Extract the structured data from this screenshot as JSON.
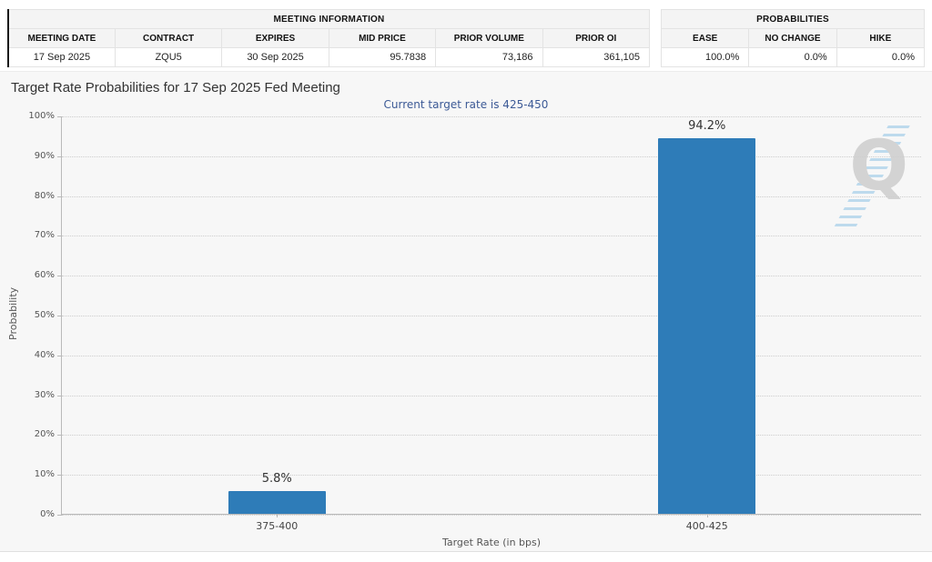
{
  "meeting_info": {
    "title": "MEETING INFORMATION",
    "columns": [
      "MEETING DATE",
      "CONTRACT",
      "EXPIRES",
      "MID PRICE",
      "PRIOR VOLUME",
      "PRIOR OI"
    ],
    "values": [
      "17 Sep 2025",
      "ZQU5",
      "30 Sep 2025",
      "95.7838",
      "73,186",
      "361,105"
    ]
  },
  "probabilities": {
    "title": "PROBABILITIES",
    "columns": [
      "EASE",
      "NO CHANGE",
      "HIKE"
    ],
    "values": [
      "100.0%",
      "0.0%",
      "0.0%"
    ]
  },
  "chart": {
    "title": "Target Rate Probabilities for 17 Sep 2025 Fed Meeting",
    "subtitle": "Current target rate is 425-450",
    "menu_icon": "hamburger-icon",
    "watermark_letter": "Q"
  },
  "chart_data": {
    "type": "bar",
    "title": "Target Rate Probabilities for 17 Sep 2025 Fed Meeting",
    "subtitle": "Current target rate is 425-450",
    "categories": [
      "375-400",
      "400-425"
    ],
    "values": [
      5.8,
      94.2
    ],
    "value_labels": [
      "5.8%",
      "94.2%"
    ],
    "xlabel": "Target Rate (in bps)",
    "ylabel": "Probability",
    "ylim": [
      0,
      100
    ],
    "ytick_step": 10,
    "ytick_suffix": "%",
    "grid": "horizontal-dotted",
    "legend": "none",
    "bar_color": "#2e7cb8"
  },
  "colors": {
    "bar": "#2e7cb8",
    "subtitle_blue": "#3c5a96",
    "chart_background": "#f7f7f7",
    "table_header_background": "#f4f4f4",
    "axis": "#b9b9b9",
    "gridline": "#cdcdcd",
    "title_text": "#333333",
    "tick_text": "#555555"
  }
}
